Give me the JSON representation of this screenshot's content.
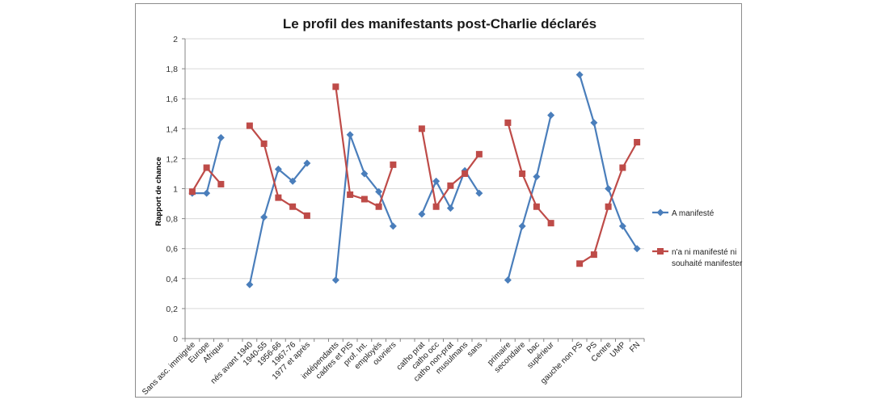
{
  "chart_data": {
    "type": "line",
    "title": "Le profil des manifestants post-Charlie déclarés",
    "xlabel": "",
    "ylabel": "Rapport de chance",
    "ylim": [
      0,
      2
    ],
    "yticks": [
      "0",
      "0,2",
      "0,4",
      "0,6",
      "0,8",
      "1",
      "1,2",
      "1,4",
      "1,6",
      "1,8",
      "2"
    ],
    "grid": true,
    "legend_position": "right",
    "categories": [
      "Sans asc. immigrée",
      "Europe",
      "Afrique",
      "",
      "nés avant 1940",
      "1940-55",
      "1956-66",
      "1967-76",
      "1977 et après",
      "",
      "indépendants",
      "cadres et PIS",
      "prof. Int.",
      "employés",
      "ouvriers",
      "",
      "catho prat",
      "catho occ",
      "catho non-prat",
      "musulmans",
      "sans",
      "",
      "primaire",
      "secondaire",
      "bac",
      "supérieur",
      "",
      "gauche non PS",
      "PS",
      "Centre",
      "UMP",
      "FN"
    ],
    "series": [
      {
        "name": "A manifesté",
        "color": "#4a7ebb",
        "marker": "diamond",
        "values": [
          0.97,
          0.97,
          1.34,
          null,
          0.36,
          0.81,
          1.13,
          1.05,
          1.17,
          null,
          0.39,
          1.36,
          1.1,
          0.98,
          0.75,
          null,
          0.83,
          1.05,
          0.87,
          1.12,
          0.97,
          null,
          0.39,
          0.75,
          1.08,
          1.49,
          null,
          1.76,
          1.44,
          1.0,
          0.75,
          0.6
        ]
      },
      {
        "name": "n'a ni manifesté ni souhaité manifester",
        "color": "#be4b48",
        "marker": "square",
        "values": [
          0.98,
          1.14,
          1.03,
          null,
          1.42,
          1.3,
          0.94,
          0.88,
          0.82,
          null,
          1.68,
          0.96,
          0.93,
          0.88,
          1.16,
          null,
          1.4,
          0.88,
          1.02,
          1.1,
          1.23,
          null,
          1.44,
          1.1,
          0.88,
          0.77,
          null,
          0.5,
          0.56,
          0.88,
          1.14,
          1.31
        ]
      }
    ]
  },
  "legend": {
    "items": [
      {
        "lines": [
          "A manifesté"
        ]
      },
      {
        "lines": [
          "n'a ni manifesté ni",
          "souhaité manifester"
        ]
      }
    ]
  }
}
